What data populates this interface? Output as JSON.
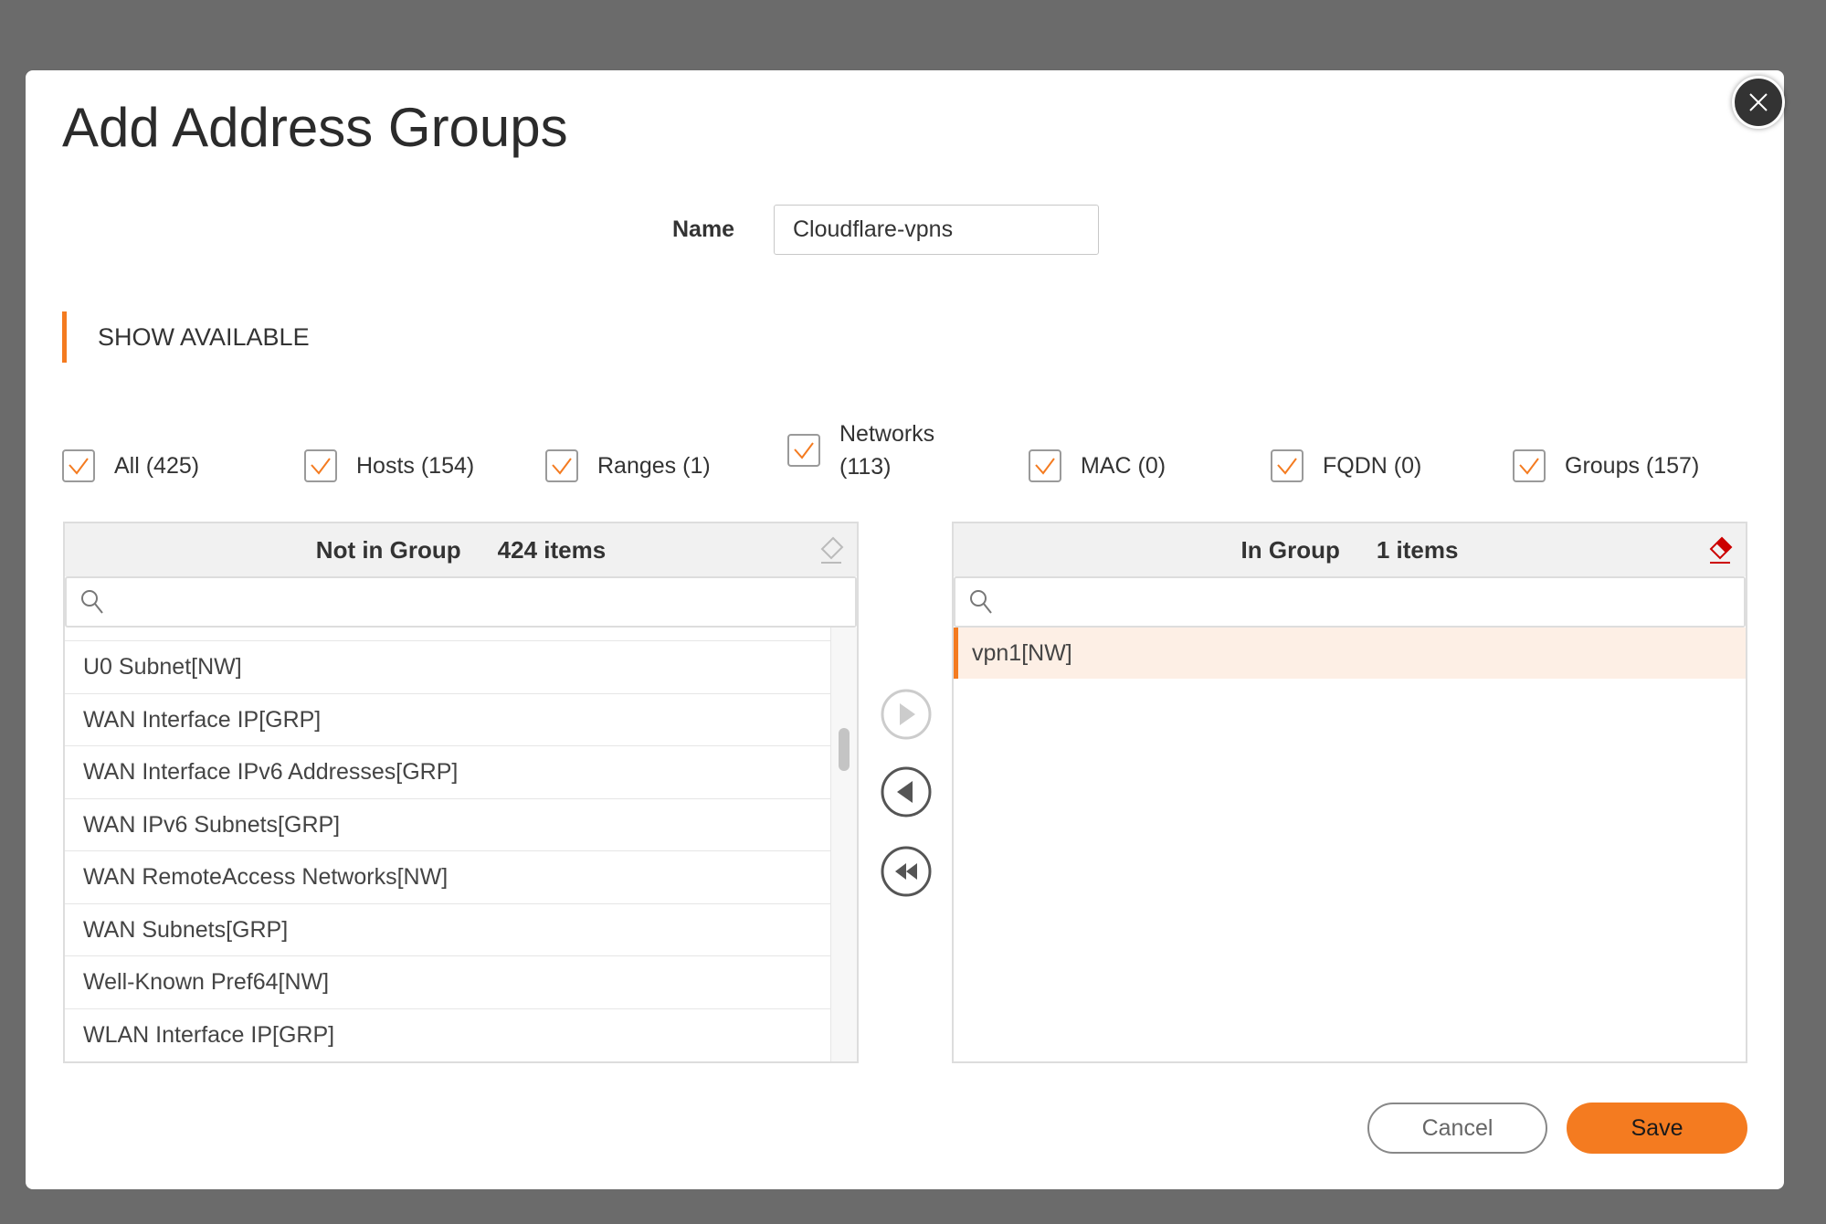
{
  "dialog": {
    "title": "Add Address Groups",
    "close_icon": "close-icon"
  },
  "name": {
    "label": "Name",
    "value": "Cloudflare-vpns"
  },
  "section": {
    "title": "SHOW AVAILABLE"
  },
  "filters": [
    {
      "label": "All (425)",
      "checked": true
    },
    {
      "label": "Hosts (154)",
      "checked": true
    },
    {
      "label": "Ranges (1)",
      "checked": true
    },
    {
      "label": "Networks",
      "label2": "(113)",
      "checked": true
    },
    {
      "label": "MAC (0)",
      "checked": true
    },
    {
      "label": "FQDN (0)",
      "checked": true
    },
    {
      "label": "Groups (157)",
      "checked": true
    }
  ],
  "not_in_group": {
    "title": "Not in Group",
    "count": "424 items",
    "search_placeholder": "",
    "items": [
      "U0 Subnet[NW]",
      "WAN Interface IP[GRP]",
      "WAN Interface IPv6 Addresses[GRP]",
      "WAN IPv6 Subnets[GRP]",
      "WAN RemoteAccess Networks[NW]",
      "WAN Subnets[GRP]",
      "Well-Known Pref64[NW]",
      "WLAN Interface IP[GRP]"
    ]
  },
  "in_group": {
    "title": "In Group",
    "count": "1 items",
    "search_placeholder": "",
    "items": [
      "vpn1[NW]"
    ]
  },
  "buttons": {
    "cancel": "Cancel",
    "save": "Save"
  },
  "colors": {
    "accent": "#f47b20",
    "selected_row": "#fdefe5",
    "eraser_active": "#cc0000"
  }
}
